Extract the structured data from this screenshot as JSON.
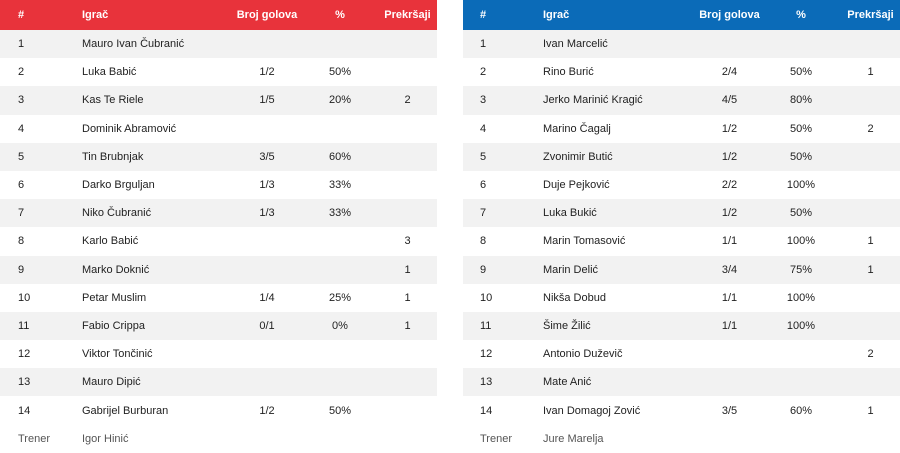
{
  "headers": {
    "num": "#",
    "player": "Igrač",
    "goals": "Broj golova",
    "pct": "%",
    "fouls": "Prekršaji"
  },
  "coach_label": "Trener",
  "colors": {
    "left_header": "#e8333b",
    "right_header": "#0b6bb8"
  },
  "teams": [
    {
      "coach": "Igor Hinić",
      "players": [
        {
          "num": "1",
          "name": "Mauro Ivan Čubranić",
          "goals": "",
          "pct": "",
          "fouls": ""
        },
        {
          "num": "2",
          "name": "Luka Babić",
          "goals": "1/2",
          "pct": "50%",
          "fouls": ""
        },
        {
          "num": "3",
          "name": "Kas Te Riele",
          "goals": "1/5",
          "pct": "20%",
          "fouls": "2"
        },
        {
          "num": "4",
          "name": "Dominik Abramović",
          "goals": "",
          "pct": "",
          "fouls": ""
        },
        {
          "num": "5",
          "name": "Tin Brubnjak",
          "goals": "3/5",
          "pct": "60%",
          "fouls": ""
        },
        {
          "num": "6",
          "name": "Darko Brguljan",
          "goals": "1/3",
          "pct": "33%",
          "fouls": ""
        },
        {
          "num": "7",
          "name": "Niko Čubranić",
          "goals": "1/3",
          "pct": "33%",
          "fouls": ""
        },
        {
          "num": "8",
          "name": "Karlo Babić",
          "goals": "",
          "pct": "",
          "fouls": "3"
        },
        {
          "num": "9",
          "name": "Marko Doknić",
          "goals": "",
          "pct": "",
          "fouls": "1"
        },
        {
          "num": "10",
          "name": "Petar Muslim",
          "goals": "1/4",
          "pct": "25%",
          "fouls": "1"
        },
        {
          "num": "11",
          "name": "Fabio Crippa",
          "goals": "0/1",
          "pct": "0%",
          "fouls": "1"
        },
        {
          "num": "12",
          "name": "Viktor Tončinić",
          "goals": "",
          "pct": "",
          "fouls": ""
        },
        {
          "num": "13",
          "name": "Mauro Dipić",
          "goals": "",
          "pct": "",
          "fouls": ""
        },
        {
          "num": "14",
          "name": "Gabrijel Burburan",
          "goals": "1/2",
          "pct": "50%",
          "fouls": ""
        }
      ]
    },
    {
      "coach": "Jure Marelja",
      "players": [
        {
          "num": "1",
          "name": "Ivan Marcelić",
          "goals": "",
          "pct": "",
          "fouls": ""
        },
        {
          "num": "2",
          "name": "Rino Burić",
          "goals": "2/4",
          "pct": "50%",
          "fouls": "1"
        },
        {
          "num": "3",
          "name": "Jerko Marinić Kragić",
          "goals": "4/5",
          "pct": "80%",
          "fouls": ""
        },
        {
          "num": "4",
          "name": "Marino Čagalj",
          "goals": "1/2",
          "pct": "50%",
          "fouls": "2"
        },
        {
          "num": "5",
          "name": "Zvonimir Butić",
          "goals": "1/2",
          "pct": "50%",
          "fouls": ""
        },
        {
          "num": "6",
          "name": "Duje Pejković",
          "goals": "2/2",
          "pct": "100%",
          "fouls": ""
        },
        {
          "num": "7",
          "name": "Luka Bukić",
          "goals": "1/2",
          "pct": "50%",
          "fouls": ""
        },
        {
          "num": "8",
          "name": "Marin Tomasović",
          "goals": "1/1",
          "pct": "100%",
          "fouls": "1"
        },
        {
          "num": "9",
          "name": "Marin Delić",
          "goals": "3/4",
          "pct": "75%",
          "fouls": "1"
        },
        {
          "num": "10",
          "name": "Nikša Dobud",
          "goals": "1/1",
          "pct": "100%",
          "fouls": ""
        },
        {
          "num": "11",
          "name": "Šime Žilić",
          "goals": "1/1",
          "pct": "100%",
          "fouls": ""
        },
        {
          "num": "12",
          "name": "Antonio Duževič",
          "goals": "",
          "pct": "",
          "fouls": "2"
        },
        {
          "num": "13",
          "name": "Mate Anić",
          "goals": "",
          "pct": "",
          "fouls": ""
        },
        {
          "num": "14",
          "name": "Ivan Domagoj Zović",
          "goals": "3/5",
          "pct": "60%",
          "fouls": "1"
        }
      ]
    }
  ]
}
